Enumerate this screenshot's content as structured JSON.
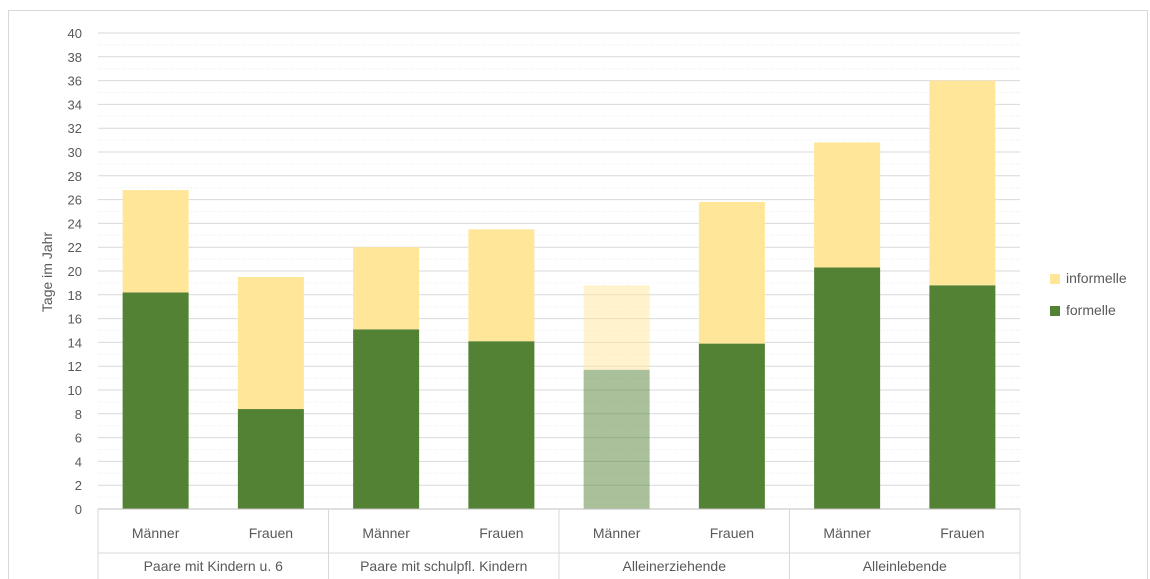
{
  "chart_data": {
    "type": "bar",
    "stacked": true,
    "ylabel": "Tage im Jahr",
    "ylim": [
      0,
      40
    ],
    "ytick_step": 2,
    "grid": true,
    "legend_position": "right",
    "groups": [
      {
        "label": "Paare mit Kindern u. 6",
        "categories": [
          "Männer",
          "Frauen"
        ]
      },
      {
        "label": "Paare mit schulpfl. Kindern",
        "categories": [
          "Männer",
          "Frauen"
        ]
      },
      {
        "label": "Alleinerziehende",
        "categories": [
          "Männer",
          "Frauen"
        ]
      },
      {
        "label": "Alleinlebende",
        "categories": [
          "Männer",
          "Frauen"
        ]
      }
    ],
    "categories": [
      "Männer",
      "Frauen",
      "Männer",
      "Frauen",
      "Männer",
      "Frauen",
      "Männer",
      "Frauen"
    ],
    "series": [
      {
        "name": "formelle",
        "color": "#548235",
        "values": [
          18.2,
          8.4,
          15.1,
          14.1,
          11.7,
          13.9,
          20.3,
          18.8
        ]
      },
      {
        "name": "informelle",
        "color": "#ffe699",
        "values": [
          8.6,
          11.1,
          6.9,
          9.4,
          7.1,
          11.9,
          10.5,
          17.2
        ]
      }
    ],
    "highlight_faded_index": 4
  }
}
